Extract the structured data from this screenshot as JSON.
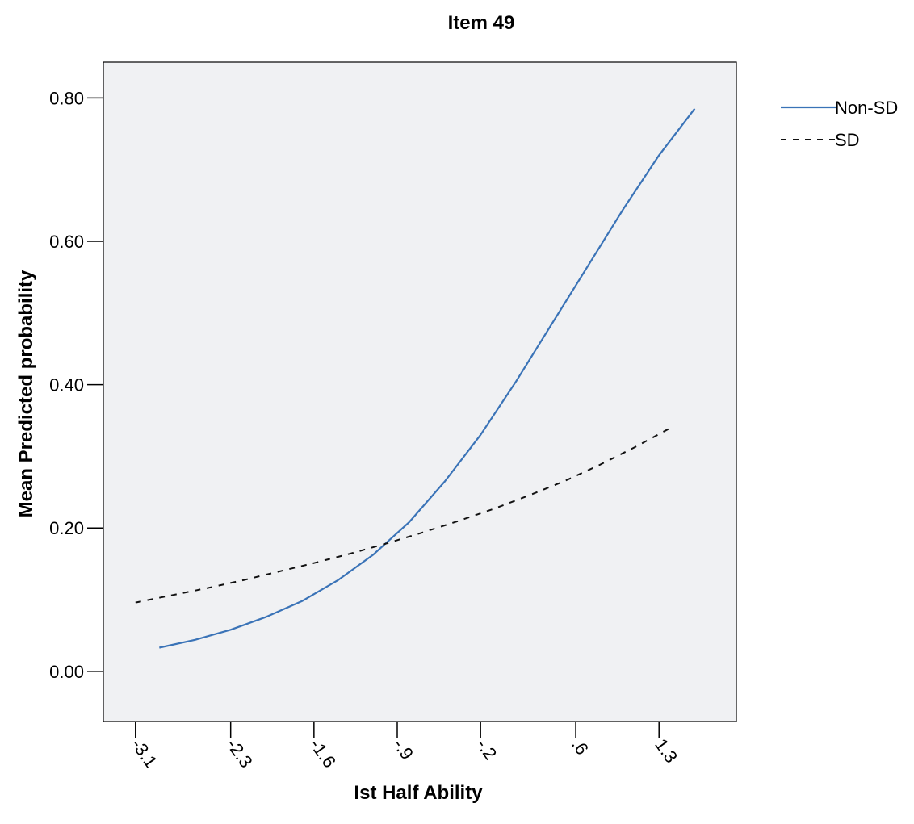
{
  "chart_data": {
    "type": "line",
    "title": "Item 49",
    "xlabel": "Ist Half Ability",
    "ylabel": "Mean Predicted probability",
    "x_ticks": [
      -3.1,
      -2.3,
      -1.6,
      -0.9,
      -0.2,
      0.6,
      1.3
    ],
    "x_tick_labels": [
      "-3.1",
      "-2.3",
      "-1.6",
      "-.9",
      "-.2",
      ".6",
      "1.3"
    ],
    "y_ticks": [
      0.0,
      0.2,
      0.4,
      0.6,
      0.8
    ],
    "y_tick_labels": [
      "0.00",
      "0.20",
      "0.40",
      "0.60",
      "0.80"
    ],
    "xlim": [
      -3.37,
      1.95
    ],
    "ylim": [
      -0.07,
      0.85
    ],
    "grid": false,
    "legend_position": "right",
    "series": [
      {
        "name": "Non-SD",
        "style": "solid",
        "color": "#3a73b7",
        "x": [
          -2.9,
          -2.6,
          -2.3,
          -2.0,
          -1.7,
          -1.4,
          -1.1,
          -0.8,
          -0.5,
          -0.2,
          0.1,
          0.4,
          0.7,
          1.0,
          1.3,
          1.6
        ],
        "y": [
          0.033,
          0.044,
          0.058,
          0.076,
          0.098,
          0.127,
          0.163,
          0.208,
          0.265,
          0.33,
          0.405,
          0.485,
          0.565,
          0.645,
          0.72,
          0.785
        ]
      },
      {
        "name": "SD",
        "style": "dashed",
        "color": "#111111",
        "x": [
          -3.1,
          -2.8,
          -2.5,
          -2.2,
          -1.9,
          -1.6,
          -1.3,
          -1.0,
          -0.7,
          -0.4,
          -0.1,
          0.2,
          0.5,
          0.8,
          1.1,
          1.4
        ],
        "y": [
          0.096,
          0.106,
          0.116,
          0.127,
          0.139,
          0.151,
          0.164,
          0.178,
          0.193,
          0.209,
          0.226,
          0.245,
          0.265,
          0.288,
          0.313,
          0.34
        ]
      }
    ]
  }
}
